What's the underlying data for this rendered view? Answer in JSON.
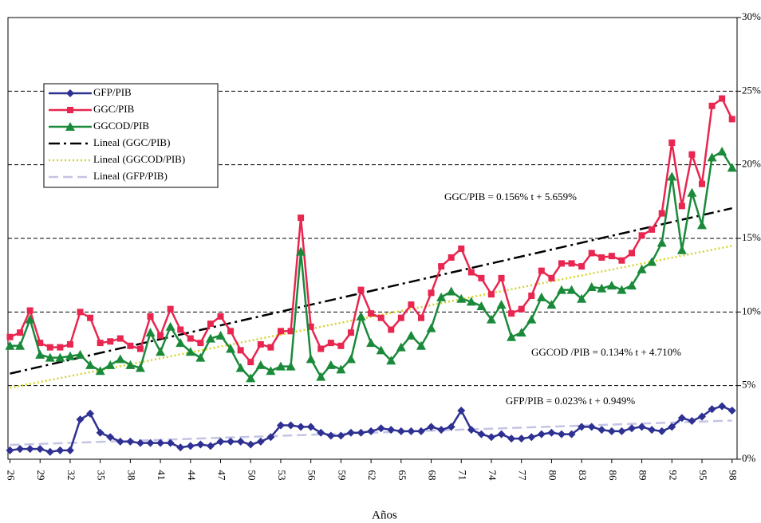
{
  "chart_data": {
    "type": "line",
    "xlabel": "Años",
    "x": [
      1926,
      1927,
      1928,
      1929,
      1930,
      1931,
      1932,
      1933,
      1934,
      1935,
      1936,
      1937,
      1938,
      1939,
      1940,
      1941,
      1942,
      1943,
      1944,
      1945,
      1946,
      1947,
      1948,
      1949,
      1950,
      1951,
      1952,
      1953,
      1954,
      1955,
      1956,
      1957,
      1958,
      1959,
      1960,
      1961,
      1962,
      1963,
      1964,
      1965,
      1966,
      1967,
      1968,
      1969,
      1970,
      1971,
      1972,
      1973,
      1974,
      1975,
      1976,
      1977,
      1978,
      1979,
      1980,
      1981,
      1982,
      1983,
      1984,
      1985,
      1986,
      1987,
      1988,
      1989,
      1990,
      1991,
      1992,
      1993,
      1994,
      1995,
      1996,
      1997,
      1998
    ],
    "xlim": [
      1925.8,
      1998.5
    ],
    "xticks": [
      {
        "value": 1926,
        "label": "26"
      },
      {
        "value": 1929,
        "label": "29"
      },
      {
        "value": 1932,
        "label": "32"
      },
      {
        "value": 1935,
        "label": "35"
      },
      {
        "value": 1938,
        "label": "38"
      },
      {
        "value": 1941,
        "label": "41"
      },
      {
        "value": 1944,
        "label": "44"
      },
      {
        "value": 1947,
        "label": "47"
      },
      {
        "value": 1950,
        "label": "50"
      },
      {
        "value": 1953,
        "label": "53"
      },
      {
        "value": 1956,
        "label": "56"
      },
      {
        "value": 1959,
        "label": "59"
      },
      {
        "value": 1962,
        "label": "62"
      },
      {
        "value": 1965,
        "label": "65"
      },
      {
        "value": 1968,
        "label": "68"
      },
      {
        "value": 1971,
        "label": "71"
      },
      {
        "value": 1974,
        "label": "74"
      },
      {
        "value": 1977,
        "label": "77"
      },
      {
        "value": 1980,
        "label": "80"
      },
      {
        "value": 1983,
        "label": "83"
      },
      {
        "value": 1986,
        "label": "86"
      },
      {
        "value": 1989,
        "label": "89"
      },
      {
        "value": 1992,
        "label": "92"
      },
      {
        "value": 1995,
        "label": "95"
      },
      {
        "value": 1998,
        "label": "98"
      }
    ],
    "ylim": [
      0,
      30
    ],
    "yticks": [
      {
        "value": 0,
        "label": "0%"
      },
      {
        "value": 5,
        "label": "5%"
      },
      {
        "value": 10,
        "label": "10%"
      },
      {
        "value": 15,
        "label": "15%"
      },
      {
        "value": 20,
        "label": "20%"
      },
      {
        "value": 25,
        "label": "25%"
      },
      {
        "value": 30,
        "label": "30%"
      }
    ],
    "grid": true,
    "legend": "upper left",
    "series": [
      {
        "name": "GFP/PIB",
        "color": "#2e3192",
        "marker": "diamond",
        "values": [
          0.6,
          0.7,
          0.7,
          0.7,
          0.5,
          0.6,
          0.6,
          2.7,
          3.1,
          1.8,
          1.5,
          1.2,
          1.2,
          1.1,
          1.1,
          1.1,
          1.1,
          0.8,
          0.9,
          1.0,
          0.9,
          1.2,
          1.2,
          1.2,
          1.0,
          1.2,
          1.5,
          2.3,
          2.3,
          2.2,
          2.2,
          1.8,
          1.6,
          1.6,
          1.8,
          1.8,
          1.9,
          2.1,
          2.0,
          1.9,
          1.9,
          1.9,
          2.2,
          2.0,
          2.2,
          3.3,
          2.0,
          1.7,
          1.5,
          1.7,
          1.4,
          1.4,
          1.5,
          1.7,
          1.8,
          1.7,
          1.7,
          2.2,
          2.2,
          2.0,
          1.9,
          1.9,
          2.1,
          2.2,
          2.0,
          1.9,
          2.2,
          2.8,
          2.6,
          2.9,
          3.4,
          3.6,
          3.3
        ]
      },
      {
        "name": "GGC/PIB",
        "color": "#e8264f",
        "marker": "square",
        "values": [
          8.3,
          8.6,
          10.1,
          7.9,
          7.6,
          7.6,
          7.8,
          10.0,
          9.6,
          7.9,
          8.0,
          8.2,
          7.7,
          7.5,
          9.7,
          8.4,
          10.2,
          8.8,
          8.2,
          7.9,
          9.2,
          9.7,
          8.7,
          7.4,
          6.6,
          7.8,
          7.6,
          8.7,
          8.7,
          16.4,
          9.0,
          7.5,
          7.9,
          7.7,
          8.6,
          11.5,
          9.9,
          9.6,
          8.8,
          9.6,
          10.5,
          9.6,
          11.3,
          13.1,
          13.7,
          14.3,
          12.7,
          12.3,
          11.2,
          12.3,
          9.9,
          10.2,
          11.1,
          12.8,
          12.3,
          13.3,
          13.3,
          13.1,
          14.0,
          13.7,
          13.8,
          13.5,
          14.0,
          15.2,
          15.6,
          16.7,
          21.5,
          17.2,
          20.7,
          18.7,
          24.0,
          24.5,
          23.1
        ]
      },
      {
        "name": "GGCOD/PIB",
        "color": "#1a8a3a",
        "marker": "triangle",
        "values": [
          7.7,
          7.7,
          9.5,
          7.1,
          6.9,
          6.9,
          7.0,
          7.1,
          6.4,
          6.0,
          6.4,
          6.8,
          6.4,
          6.2,
          8.6,
          7.3,
          9.0,
          7.9,
          7.3,
          6.9,
          8.2,
          8.4,
          7.5,
          6.2,
          5.5,
          6.4,
          6.0,
          6.3,
          6.3,
          14.1,
          6.8,
          5.6,
          6.4,
          6.1,
          6.8,
          9.7,
          7.9,
          7.4,
          6.7,
          7.6,
          8.4,
          7.7,
          8.9,
          11.0,
          11.4,
          10.9,
          10.7,
          10.4,
          9.5,
          10.5,
          8.3,
          8.6,
          9.5,
          11.0,
          10.5,
          11.5,
          11.5,
          10.9,
          11.7,
          11.6,
          11.8,
          11.5,
          11.8,
          12.9,
          13.4,
          14.7,
          19.2,
          14.2,
          18.1,
          15.9,
          20.5,
          20.9,
          19.8
        ]
      },
      {
        "name": "Lineal (GGC/PIB)",
        "color": "#000000",
        "dash": "14 5 3 5",
        "x": [
          1926,
          1998
        ],
        "values": [
          5.815,
          17.047
        ]
      },
      {
        "name": "Lineal (GGCOD/PIB)",
        "color": "#d4d42a",
        "dash": "2 3",
        "x": [
          1926,
          1998
        ],
        "values": [
          4.844,
          14.492
        ]
      },
      {
        "name": "Lineal (GFP/PIB)",
        "color": "#c4c4e4",
        "dash": "12 6",
        "x": [
          1926,
          1998
        ],
        "values": [
          0.972,
          2.628
        ]
      }
    ],
    "annotations": [
      "GGC/PIB = 0.156% t + 5.659%",
      "GGCOD /PIB = 0.134% t + 4.710%",
      "GFP/PIB = 0.023% t + 0.949%"
    ]
  }
}
